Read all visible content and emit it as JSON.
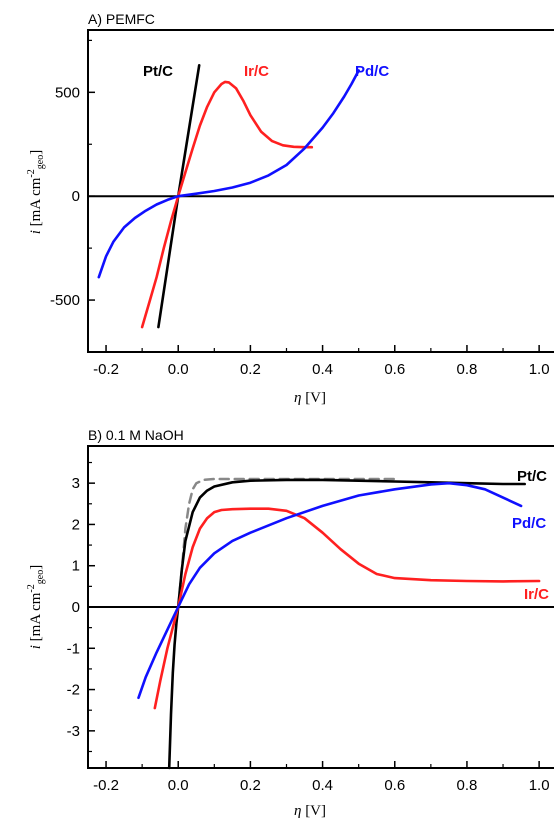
{
  "chart_data": [
    {
      "type": "line",
      "title": "A) PEMFC",
      "xlabel": "η [V]",
      "ylabel": "i [mA cm-2geo]",
      "xlim": [
        -0.25,
        1.08
      ],
      "ylim": [
        -750,
        800
      ],
      "xticks": [
        "-0.2",
        "0.0",
        "0.2",
        "0.4",
        "0.6",
        "0.8",
        "1.0"
      ],
      "yticks": [
        "-500",
        "0",
        "500"
      ],
      "series": [
        {
          "name": "Pt/C",
          "color": "#000000",
          "dash": false,
          "x": [
            -0.055,
            0.0,
            0.058
          ],
          "y": [
            -630,
            0,
            630
          ]
        },
        {
          "name": "Ir/C",
          "color": "#ff2020",
          "dash": false,
          "x": [
            -0.1,
            -0.08,
            -0.06,
            -0.04,
            -0.02,
            0.0,
            0.02,
            0.04,
            0.06,
            0.08,
            0.1,
            0.12,
            0.13,
            0.14,
            0.16,
            0.18,
            0.2,
            0.23,
            0.26,
            0.29,
            0.32,
            0.35,
            0.37
          ],
          "y": [
            -630,
            -510,
            -390,
            -250,
            -120,
            0,
            115,
            230,
            340,
            430,
            500,
            540,
            550,
            548,
            520,
            460,
            390,
            310,
            265,
            245,
            238,
            236,
            236
          ]
        },
        {
          "name": "Pd/C",
          "color": "#1010ff",
          "dash": false,
          "x": [
            -0.22,
            -0.2,
            -0.18,
            -0.15,
            -0.12,
            -0.09,
            -0.06,
            -0.03,
            0.0,
            0.05,
            0.1,
            0.15,
            0.2,
            0.25,
            0.3,
            0.35,
            0.4,
            0.43,
            0.46,
            0.48,
            0.5
          ],
          "y": [
            -390,
            -290,
            -220,
            -150,
            -105,
            -70,
            -40,
            -18,
            0,
            12,
            25,
            42,
            65,
            100,
            150,
            230,
            330,
            400,
            480,
            540,
            605
          ]
        }
      ],
      "labels": [
        "Pt/C",
        "Ir/C",
        "Pd/C"
      ]
    },
    {
      "type": "line",
      "title": "B) 0.1 M NaOH",
      "xlabel": "η [V]",
      "ylabel": "i [mA cm-2geo]",
      "xlim": [
        -0.25,
        1.08
      ],
      "ylim": [
        -3.9,
        3.9
      ],
      "xticks": [
        "-0.2",
        "0.0",
        "0.2",
        "0.4",
        "0.6",
        "0.8",
        "1.0"
      ],
      "yticks": [
        "-3",
        "-2",
        "-1",
        "0",
        "1",
        "2",
        "3"
      ],
      "series": [
        {
          "name": "",
          "color": "#888888",
          "dash": true,
          "x": [
            0.0,
            0.01,
            0.02,
            0.03,
            0.04,
            0.05,
            0.07,
            0.1,
            0.15,
            0.25,
            0.4,
            0.6
          ],
          "y": [
            0,
            0.9,
            1.9,
            2.5,
            2.85,
            3.0,
            3.08,
            3.1,
            3.1,
            3.1,
            3.1,
            3.1
          ]
        },
        {
          "name": "Pt/C",
          "color": "#000000",
          "dash": false,
          "x": [
            -0.025,
            -0.02,
            -0.015,
            -0.01,
            -0.005,
            0.0,
            0.01,
            0.02,
            0.04,
            0.06,
            0.08,
            0.1,
            0.15,
            0.2,
            0.3,
            0.4,
            0.5,
            0.6,
            0.7,
            0.8,
            0.9,
            0.96
          ],
          "y": [
            -3.9,
            -2.6,
            -1.6,
            -0.9,
            -0.4,
            0,
            0.9,
            1.6,
            2.3,
            2.65,
            2.82,
            2.92,
            3.02,
            3.06,
            3.08,
            3.08,
            3.06,
            3.04,
            3.02,
            3.0,
            2.98,
            2.98
          ]
        },
        {
          "name": "Ir/C",
          "color": "#ff2020",
          "dash": false,
          "x": [
            -0.065,
            -0.05,
            -0.03,
            -0.015,
            0.0,
            0.02,
            0.04,
            0.06,
            0.08,
            0.1,
            0.12,
            0.15,
            0.2,
            0.25,
            0.3,
            0.35,
            0.4,
            0.45,
            0.5,
            0.55,
            0.6,
            0.7,
            0.8,
            0.9,
            1.0
          ],
          "y": [
            -2.45,
            -1.8,
            -1.0,
            -0.5,
            0,
            0.8,
            1.45,
            1.9,
            2.15,
            2.3,
            2.35,
            2.37,
            2.38,
            2.38,
            2.33,
            2.15,
            1.8,
            1.4,
            1.05,
            0.8,
            0.7,
            0.65,
            0.63,
            0.62,
            0.63
          ]
        },
        {
          "name": "Pd/C",
          "color": "#1010ff",
          "dash": false,
          "x": [
            -0.11,
            -0.09,
            -0.06,
            -0.03,
            0.0,
            0.03,
            0.06,
            0.1,
            0.15,
            0.2,
            0.3,
            0.4,
            0.5,
            0.6,
            0.7,
            0.75,
            0.8,
            0.85,
            0.9,
            0.95
          ],
          "y": [
            -2.2,
            -1.7,
            -1.1,
            -0.55,
            0,
            0.55,
            0.95,
            1.3,
            1.6,
            1.8,
            2.15,
            2.45,
            2.7,
            2.85,
            2.97,
            3.0,
            2.95,
            2.85,
            2.65,
            2.45
          ]
        }
      ],
      "labels": [
        "Pt/C",
        "Pd/C",
        "Ir/C"
      ]
    }
  ]
}
